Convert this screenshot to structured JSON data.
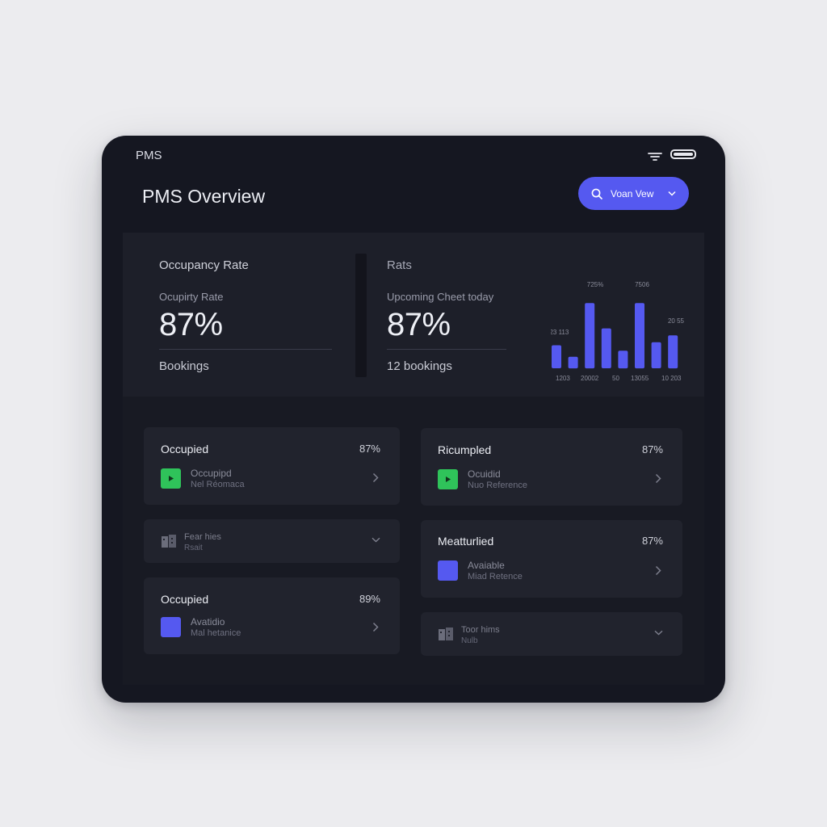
{
  "header": {
    "app_name": "PMS",
    "title": "PMS Overview",
    "view_button_label": "Voan Vew"
  },
  "stats": [
    {
      "heading": "Occupancy Rate",
      "sublabel": "Ocupirty Rate",
      "value": "87%",
      "foot": "Bookings"
    },
    {
      "heading": "Rats",
      "sublabel": "Upcoming Cheet today",
      "value": "87%",
      "foot": "12 bookings"
    }
  ],
  "chart_labels": {
    "top": [
      "725%",
      "7506"
    ],
    "left": "123 113",
    "right": "20 55",
    "bottom": [
      "1203",
      "20002",
      "50",
      "13055",
      "10 203"
    ]
  },
  "chart_data": {
    "type": "bar",
    "title": "",
    "categories": [
      "1",
      "2",
      "3",
      "4",
      "5",
      "6",
      "7",
      "8"
    ],
    "values": [
      30,
      15,
      85,
      52,
      23,
      85,
      34,
      43
    ],
    "ylim": [
      0,
      100
    ],
    "color": "#5559f0",
    "grid": false
  },
  "cards": [
    {
      "title": "Occupied",
      "value": "87%",
      "line1": "Occupipd",
      "line2": "Nel Réomaca",
      "icon": "play-icon",
      "icon_color": "#2fc35a"
    },
    {
      "title": "Ricumpled",
      "value": "87%",
      "line1": "Ocuidid",
      "line2": "Nuo Reference",
      "icon": "play-icon",
      "icon_color": "#2fc35a"
    },
    {
      "title": "Meatturlied",
      "value": "87%",
      "line1": "Avaiable",
      "line2": "Miad Retence",
      "icon": "square-icon",
      "icon_color": "#5559f0"
    },
    {
      "title": "Occupied",
      "value": "89%",
      "line1": "Avatidio",
      "line2": "Mal hetanice",
      "icon": "square-icon",
      "icon_color": "#5559f0"
    }
  ],
  "collapsed": [
    {
      "line1": "Fear hies",
      "line2": "Rsait",
      "icon": "building-icon"
    },
    {
      "line1": "Toor hims",
      "line2": "Nulb",
      "icon": "building-icon"
    }
  ],
  "colors": {
    "accent": "#5559f0",
    "success": "#2fc35a",
    "device_bg": "#151721",
    "card_bg": "#21232d"
  }
}
